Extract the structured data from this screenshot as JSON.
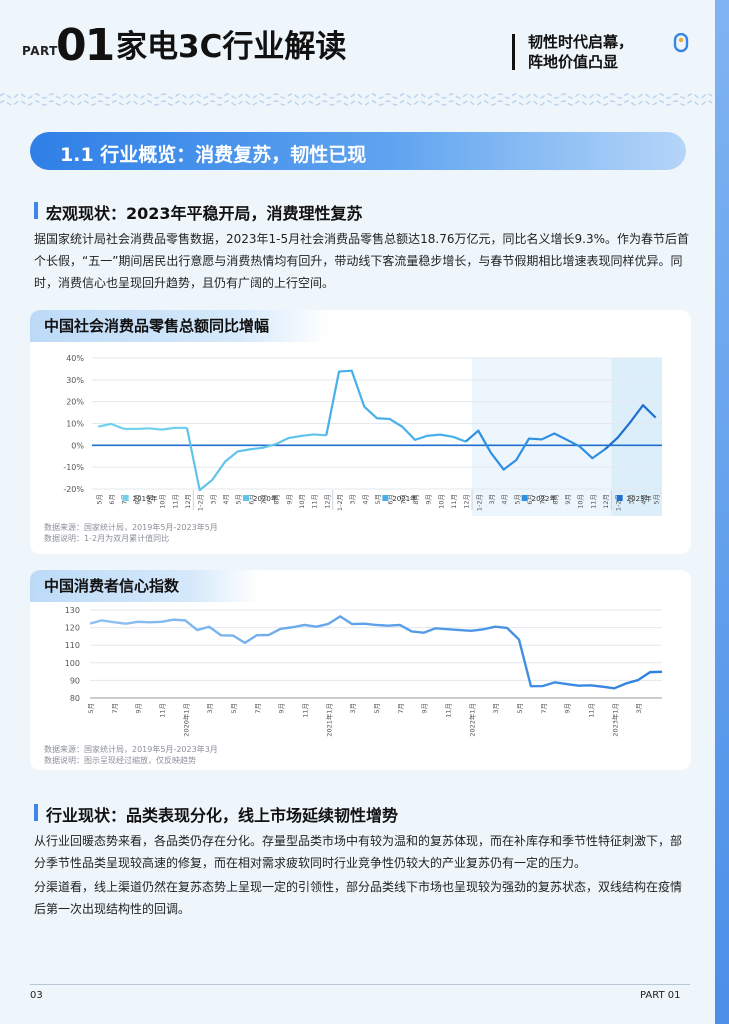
{
  "header": {
    "part_label": "PART",
    "part_number": "01",
    "title": "家电3C行业解读",
    "slogan_line1": "韧性时代启幕，",
    "slogan_line2": "阵地价值凸显"
  },
  "section": {
    "title": "1.1 行业概览：消费复苏，韧性已现"
  },
  "macro": {
    "heading": "宏观现状：2023年平稳开局，消费理性复苏",
    "paragraph": "据国家统计局社会消费品零售数据，2023年1-5月社会消费品零售总额达18.76万亿元，同比名义增长9.3%。作为春节后首个长假，“五一”期间居民出行意愿与消费热情均有回升，带动线下客流量稳步增长，与春节假期相比增速表现同样优异。同时，消费信心也呈现回升趋势，且仍有广阔的上行空间。"
  },
  "industry": {
    "heading": "行业现状：品类表现分化，线上市场延续韧性增势",
    "paragraph1": "从行业回暖态势来看，各品类仍存在分化。存量型品类市场中有较为温和的复苏体现，而在补库存和季节性特征刺激下，部分季节性品类呈现较高速的修复，而在相对需求疲软同时行业竞争性仍较大的产业复苏仍有一定的压力。",
    "paragraph2": "分渠道看，线上渠道仍然在复苏态势上呈现一定的引领性，部分品类线下市场也呈现较为强劲的复苏状态，双线结构在疫情后第一次出现结构性的回调。"
  },
  "chart_data": [
    {
      "type": "line",
      "title": "中国社会消费品零售总额同比增幅",
      "y_ticks": [
        "40%",
        "30%",
        "20%",
        "10%",
        "0%",
        "-10%",
        "-20%"
      ],
      "ylim": [
        -20,
        40
      ],
      "x": [
        "5月",
        "6月",
        "7月",
        "8月",
        "9月",
        "10月",
        "11月",
        "12月",
        "1-2月",
        "3月",
        "4月",
        "5月",
        "6月",
        "7月",
        "8月",
        "9月",
        "10月",
        "11月",
        "12月",
        "1-2月",
        "3月",
        "4月",
        "5月",
        "6月",
        "7月",
        "8月",
        "9月",
        "10月",
        "11月",
        "12月",
        "1-2月",
        "3月",
        "4月",
        "5月",
        "6月",
        "7月",
        "8月",
        "9月",
        "10月",
        "11月",
        "12月",
        "1-2月",
        "3月",
        "4月",
        "5月"
      ],
      "groups": [
        {
          "name": "2019年",
          "start": 0,
          "end": 7,
          "color": "#6fd1ec"
        },
        {
          "name": "2020年",
          "start": 8,
          "end": 18,
          "color": "#60c4ea"
        },
        {
          "name": "2021年",
          "start": 19,
          "end": 29,
          "color": "#47b0e8"
        },
        {
          "name": "2022年",
          "start": 30,
          "end": 40,
          "color": "#2f8fe0"
        },
        {
          "name": "2023年",
          "start": 41,
          "end": 44,
          "color": "#1f6fcf"
        }
      ],
      "values": [
        8.6,
        9.8,
        7.6,
        7.5,
        7.8,
        7.2,
        8.0,
        8.0,
        -20.5,
        -15.8,
        -7.5,
        -2.8,
        -1.8,
        -1.1,
        0.5,
        3.3,
        4.3,
        5.0,
        4.6,
        33.8,
        34.2,
        17.7,
        12.4,
        12.1,
        8.5,
        2.5,
        4.4,
        4.9,
        3.9,
        1.7,
        6.7,
        -3.5,
        -11.1,
        -6.7,
        3.1,
        2.7,
        5.4,
        2.5,
        -0.5,
        -5.9,
        -1.8,
        3.5,
        10.6,
        18.4,
        12.7
      ],
      "source": "数据来源：国家统计局，2019年5月-2023年5月",
      "note": "数据说明：1-2月为双月累计值同比"
    },
    {
      "type": "line",
      "title": "中国消费者信心指数",
      "y_ticks": [
        130,
        120,
        110,
        100,
        90,
        80
      ],
      "ylim": [
        80,
        130
      ],
      "x_labels": [
        "5月",
        "7月",
        "9月",
        "11月",
        "2020年1月",
        "3月",
        "5月",
        "7月",
        "9月",
        "11月",
        "2021年1月",
        "3月",
        "5月",
        "7月",
        "9月",
        "11月",
        "2022年1月",
        "3月",
        "5月",
        "7月",
        "9月",
        "11月",
        "2023年1月",
        "3月"
      ],
      "values": [
        122.3,
        124.1,
        123.1,
        122.2,
        123.3,
        123.0,
        123.3,
        124.5,
        124.1,
        118.6,
        120.5,
        115.6,
        115.5,
        111.3,
        115.7,
        115.8,
        119.3,
        120.2,
        121.5,
        120.5,
        122.1,
        126.4,
        122.0,
        122.2,
        121.5,
        121.1,
        121.5,
        117.8,
        117.1,
        119.6,
        119.1,
        118.6,
        118.2,
        119.0,
        120.5,
        119.8,
        113.2,
        86.7,
        86.8,
        88.9,
        87.9,
        87.0,
        87.2,
        86.4,
        85.5,
        88.3,
        90.2,
        94.7,
        94.9
      ],
      "source": "数据来源：国家统计局，2019年5月-2023年3月",
      "note": "数据说明：图示呈现经过缩放，仅反映趋势"
    }
  ],
  "footer": {
    "page_number": "03",
    "part": "PART 01"
  }
}
